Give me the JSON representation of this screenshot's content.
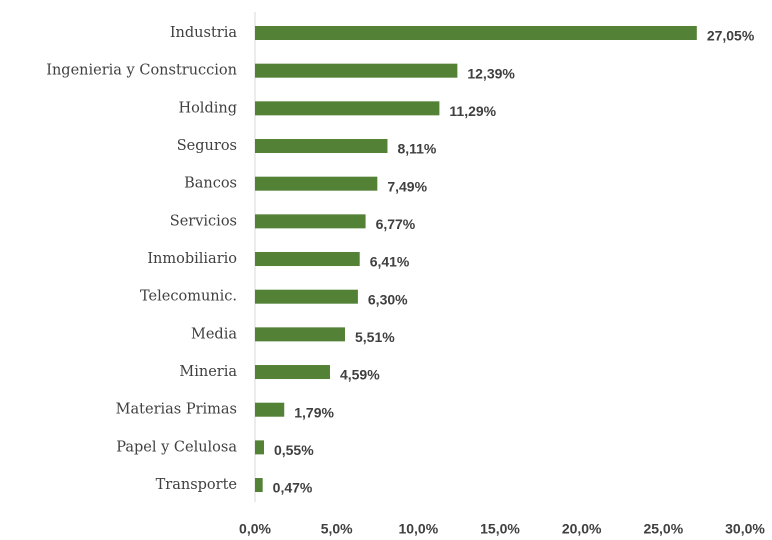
{
  "chart_data": {
    "type": "bar",
    "orientation": "horizontal",
    "categories": [
      "Industria",
      "Ingenieria y Construccion",
      "Holding",
      "Seguros",
      "Bancos",
      "Servicios",
      "Inmobiliario",
      "Telecomunic.",
      "Media",
      "Mineria",
      "Materias Primas",
      "Papel y Celulosa",
      "Transporte"
    ],
    "values": [
      27.05,
      12.39,
      11.29,
      8.11,
      7.49,
      6.77,
      6.41,
      6.3,
      5.51,
      4.59,
      1.79,
      0.55,
      0.47
    ],
    "value_labels": [
      "27,05%",
      "12,39%",
      "11,29%",
      "8,11%",
      "7,49%",
      "6,77%",
      "6,41%",
      "6,30%",
      "5,51%",
      "4,59%",
      "1,79%",
      "0,55%",
      "0,47%"
    ],
    "color": "#538135",
    "xlim": [
      0,
      30
    ],
    "xticks": [
      {
        "value": 0,
        "label": "0,0%"
      },
      {
        "value": 5,
        "label": "5,0%"
      },
      {
        "value": 10,
        "label": "10,0%"
      },
      {
        "value": 15,
        "label": "15,0%"
      },
      {
        "value": 20,
        "label": "20,0%"
      },
      {
        "value": 25,
        "label": "25,0%"
      },
      {
        "value": 30,
        "label": "30,0%"
      }
    ],
    "grid": false
  }
}
